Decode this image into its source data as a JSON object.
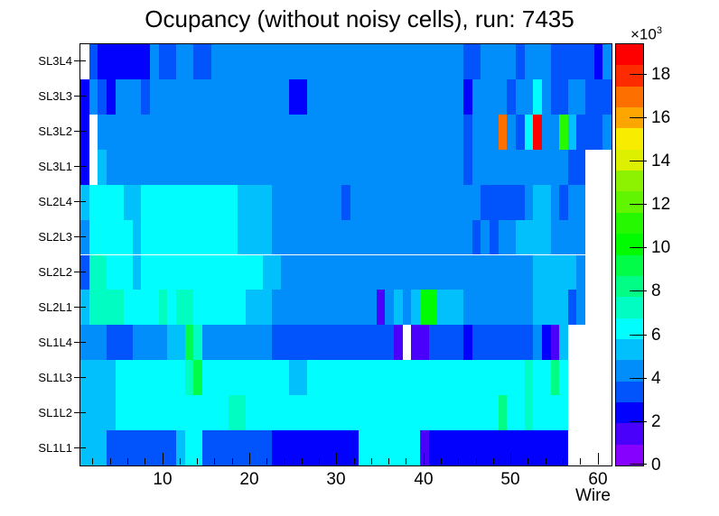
{
  "title": "Ocupancy (without noisy cells), run: 7435",
  "axes": {
    "x_label": "Wire",
    "x_major_ticks": [
      10,
      20,
      30,
      40,
      50,
      60
    ],
    "x_minor_step": 2,
    "y_labels": [
      "SL3L4",
      "SL3L3",
      "SL3L2",
      "SL3L1",
      "SL2L4",
      "SL2L3",
      "SL2L2",
      "SL2L1",
      "SL1L4",
      "SL1L3",
      "SL1L2",
      "SL1L1"
    ]
  },
  "z_scale": {
    "base": "×10",
    "exp": "3"
  },
  "colorbar": {
    "tick_values": [
      0,
      2,
      4,
      6,
      8,
      10,
      12,
      14,
      16,
      18
    ],
    "zmax_thousands": 19.4,
    "band_colors_bottom_to_top": [
      "#8601fe",
      "#4a01fb",
      "#0101fd",
      "#0153fb",
      "#018efb",
      "#01c0fc",
      "#01fdfd",
      "#02fdc2",
      "#01fd86",
      "#01fd48",
      "#01fb01",
      "#25f801",
      "#62f501",
      "#8cf201",
      "#dcf000",
      "#f8ed00",
      "#fda500",
      "#fd7000",
      "#fd2c00",
      "#fe0000"
    ]
  },
  "chart_data": {
    "type": "heatmap",
    "title": "Ocupancy (without noisy cells), run: 7435",
    "xlabel": "Wire",
    "x_range": [
      1,
      61
    ],
    "value_units": "counts × 10³ (occupancy); each segment = [wire_start, wire_end, approx_value_in_thousands]; null = empty (white) bin",
    "legend_position": "right-colorbar",
    "rows_top_to_bottom": [
      {
        "label": "SL3L4",
        "segments": [
          [
            1,
            1,
            null
          ],
          [
            2,
            2,
            3
          ],
          [
            3,
            8,
            2
          ],
          [
            9,
            9,
            4
          ],
          [
            10,
            11,
            3
          ],
          [
            12,
            13,
            4
          ],
          [
            14,
            15,
            3
          ],
          [
            16,
            44,
            4
          ],
          [
            45,
            46,
            3
          ],
          [
            47,
            50,
            4
          ],
          [
            51,
            51,
            3
          ],
          [
            52,
            54,
            4
          ],
          [
            55,
            59,
            3
          ],
          [
            60,
            60,
            2
          ],
          [
            61,
            61,
            4
          ]
        ]
      },
      {
        "label": "SL3L3",
        "segments": [
          [
            1,
            1,
            2
          ],
          [
            2,
            2,
            4
          ],
          [
            3,
            3,
            3
          ],
          [
            4,
            4,
            2
          ],
          [
            5,
            7,
            4
          ],
          [
            8,
            8,
            3
          ],
          [
            9,
            24,
            4
          ],
          [
            25,
            26,
            2
          ],
          [
            27,
            44,
            4
          ],
          [
            45,
            45,
            2
          ],
          [
            46,
            49,
            4
          ],
          [
            50,
            50,
            3
          ],
          [
            51,
            52,
            4
          ],
          [
            53,
            53,
            6
          ],
          [
            54,
            54,
            4
          ],
          [
            55,
            56,
            3
          ],
          [
            57,
            58,
            4
          ],
          [
            59,
            61,
            3
          ]
        ]
      },
      {
        "label": "SL3L2",
        "segments": [
          [
            1,
            1,
            2
          ],
          [
            2,
            2,
            null
          ],
          [
            3,
            44,
            4
          ],
          [
            45,
            45,
            3
          ],
          [
            46,
            48,
            4
          ],
          [
            49,
            49,
            17
          ],
          [
            50,
            50,
            4
          ],
          [
            51,
            51,
            3
          ],
          [
            52,
            52,
            6
          ],
          [
            53,
            53,
            19
          ],
          [
            54,
            55,
            4
          ],
          [
            56,
            56,
            11
          ],
          [
            57,
            57,
            5
          ],
          [
            58,
            60,
            3
          ],
          [
            61,
            61,
            4
          ]
        ]
      },
      {
        "label": "SL3L1",
        "segments": [
          [
            1,
            1,
            2
          ],
          [
            2,
            2,
            null
          ],
          [
            3,
            3,
            5
          ],
          [
            4,
            44,
            4
          ],
          [
            45,
            45,
            3
          ],
          [
            46,
            56,
            4
          ],
          [
            57,
            58,
            3
          ],
          [
            59,
            61,
            null
          ]
        ]
      },
      {
        "label": "SL2L4",
        "segments": [
          [
            1,
            1,
            5
          ],
          [
            2,
            5,
            6
          ],
          [
            6,
            7,
            5
          ],
          [
            8,
            18,
            6
          ],
          [
            19,
            22,
            5
          ],
          [
            23,
            30,
            4
          ],
          [
            31,
            31,
            3
          ],
          [
            32,
            46,
            4
          ],
          [
            47,
            51,
            3
          ],
          [
            52,
            52,
            4
          ],
          [
            53,
            54,
            5
          ],
          [
            55,
            55,
            4
          ],
          [
            56,
            56,
            3
          ],
          [
            57,
            58,
            4
          ],
          [
            59,
            61,
            null
          ]
        ]
      },
      {
        "label": "SL2L3",
        "segments": [
          [
            1,
            1,
            4
          ],
          [
            2,
            6,
            6
          ],
          [
            7,
            7,
            5
          ],
          [
            8,
            18,
            6
          ],
          [
            19,
            22,
            5
          ],
          [
            23,
            45,
            4
          ],
          [
            46,
            46,
            3
          ],
          [
            47,
            47,
            4
          ],
          [
            48,
            48,
            3
          ],
          [
            49,
            50,
            4
          ],
          [
            51,
            54,
            5
          ],
          [
            55,
            58,
            4
          ],
          [
            59,
            61,
            null
          ]
        ]
      },
      {
        "label": "SL2L2",
        "segments": [
          [
            1,
            1,
            3
          ],
          [
            2,
            3,
            7
          ],
          [
            4,
            6,
            6
          ],
          [
            7,
            7,
            5
          ],
          [
            8,
            21,
            6
          ],
          [
            22,
            23,
            5
          ],
          [
            24,
            52,
            4
          ],
          [
            53,
            57,
            5
          ],
          [
            58,
            58,
            4
          ],
          [
            59,
            61,
            null
          ]
        ]
      },
      {
        "label": "SL2L1",
        "segments": [
          [
            1,
            1,
            5
          ],
          [
            2,
            5,
            7
          ],
          [
            6,
            9,
            6
          ],
          [
            10,
            10,
            7
          ],
          [
            11,
            11,
            6
          ],
          [
            12,
            13,
            7
          ],
          [
            14,
            19,
            6
          ],
          [
            20,
            22,
            5
          ],
          [
            23,
            34,
            4
          ],
          [
            35,
            35,
            1
          ],
          [
            36,
            36,
            4
          ],
          [
            37,
            37,
            5
          ],
          [
            38,
            38,
            4
          ],
          [
            39,
            39,
            5
          ],
          [
            40,
            41,
            10
          ],
          [
            42,
            44,
            5
          ],
          [
            45,
            52,
            4
          ],
          [
            53,
            56,
            5
          ],
          [
            57,
            57,
            3
          ],
          [
            58,
            58,
            4
          ],
          [
            59,
            61,
            null
          ]
        ]
      },
      {
        "label": "SL1L4",
        "segments": [
          [
            1,
            3,
            4
          ],
          [
            4,
            6,
            3
          ],
          [
            7,
            10,
            4
          ],
          [
            11,
            12,
            5
          ],
          [
            13,
            13,
            9
          ],
          [
            14,
            14,
            7
          ],
          [
            15,
            22,
            4
          ],
          [
            23,
            36,
            3
          ],
          [
            37,
            37,
            1
          ],
          [
            38,
            38,
            null
          ],
          [
            39,
            40,
            1
          ],
          [
            41,
            44,
            3
          ],
          [
            45,
            45,
            2
          ],
          [
            46,
            52,
            3
          ],
          [
            53,
            53,
            4
          ],
          [
            54,
            54,
            2
          ],
          [
            55,
            55,
            1
          ],
          [
            56,
            56,
            5
          ],
          [
            57,
            61,
            null
          ]
        ]
      },
      {
        "label": "SL1L3",
        "segments": [
          [
            1,
            4,
            5
          ],
          [
            5,
            12,
            6
          ],
          [
            13,
            13,
            7
          ],
          [
            14,
            14,
            9
          ],
          [
            15,
            24,
            6
          ],
          [
            25,
            26,
            5
          ],
          [
            27,
            51,
            6
          ],
          [
            52,
            52,
            7
          ],
          [
            53,
            54,
            6
          ],
          [
            55,
            55,
            8
          ],
          [
            56,
            56,
            6
          ],
          [
            57,
            61,
            null
          ]
        ]
      },
      {
        "label": "SL1L2",
        "segments": [
          [
            1,
            4,
            5
          ],
          [
            5,
            17,
            6
          ],
          [
            18,
            19,
            7
          ],
          [
            20,
            48,
            6
          ],
          [
            49,
            49,
            8
          ],
          [
            50,
            51,
            6
          ],
          [
            52,
            52,
            7
          ],
          [
            53,
            56,
            6
          ],
          [
            57,
            61,
            null
          ]
        ]
      },
      {
        "label": "SL1L1",
        "segments": [
          [
            1,
            3,
            5
          ],
          [
            4,
            11,
            3
          ],
          [
            12,
            12,
            5
          ],
          [
            13,
            14,
            6
          ],
          [
            15,
            22,
            3
          ],
          [
            23,
            32,
            2
          ],
          [
            33,
            39,
            6
          ],
          [
            40,
            40,
            1
          ],
          [
            41,
            56,
            2
          ],
          [
            57,
            61,
            null
          ]
        ]
      }
    ]
  }
}
